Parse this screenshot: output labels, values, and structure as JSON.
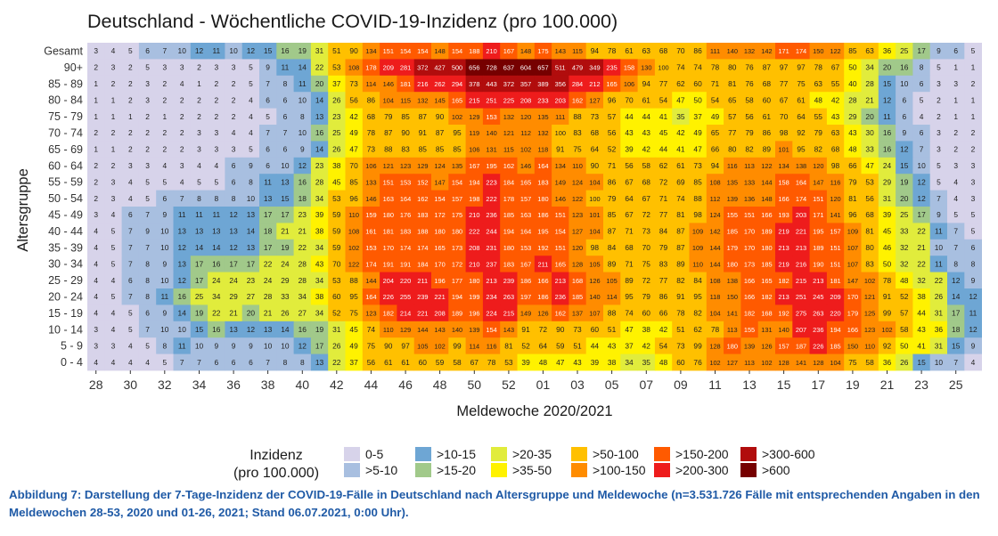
{
  "chart_data": {
    "type": "heatmap",
    "title": "Deutschland - Wöchentliche COVID-19-Inzidenz (pro 100.000)",
    "xlabel": "Meldewoche 2020/2021",
    "ylabel": "Altersgruppe",
    "x_tick_labels": [
      "28",
      "30",
      "32",
      "34",
      "36",
      "38",
      "40",
      "42",
      "44",
      "46",
      "48",
      "50",
      "52",
      "01",
      "03",
      "05",
      "07",
      "09",
      "11",
      "13",
      "15",
      "17",
      "19",
      "21",
      "23",
      "25"
    ],
    "weeks": [
      "28",
      "29",
      "30",
      "31",
      "32",
      "33",
      "34",
      "35",
      "36",
      "37",
      "38",
      "39",
      "40",
      "41",
      "42",
      "43",
      "44",
      "45",
      "46",
      "47",
      "48",
      "49",
      "50",
      "51",
      "52",
      "53",
      "01",
      "02",
      "03",
      "04",
      "05",
      "06",
      "07",
      "08",
      "09",
      "10",
      "11",
      "12",
      "13",
      "14",
      "15",
      "16",
      "17",
      "18",
      "19",
      "20",
      "21",
      "22",
      "23",
      "24",
      "25",
      "26"
    ],
    "rows": [
      {
        "label": "Gesamt",
        "values": [
          3,
          4,
          5,
          6,
          7,
          10,
          12,
          11,
          10,
          12,
          15,
          16,
          19,
          31,
          51,
          90,
          134,
          151,
          154,
          154,
          148,
          154,
          188,
          210,
          167,
          148,
          175,
          143,
          115,
          94,
          78,
          61,
          63,
          68,
          70,
          86,
          111,
          140,
          132,
          142,
          171,
          174,
          150,
          122,
          85,
          63,
          36,
          25,
          17,
          9,
          6,
          5
        ]
      },
      {
        "label": "90+",
        "values": [
          2,
          3,
          2,
          5,
          3,
          3,
          2,
          3,
          3,
          5,
          9,
          11,
          14,
          22,
          53,
          108,
          178,
          209,
          281,
          372,
          427,
          500,
          656,
          728,
          637,
          604,
          657,
          511,
          479,
          349,
          235,
          158,
          130,
          100,
          74,
          74,
          78,
          80,
          76,
          87,
          97,
          97,
          78,
          67,
          50,
          34,
          20,
          16,
          8,
          5,
          1,
          1
        ]
      },
      {
        "label": "85 - 89",
        "values": [
          1,
          2,
          2,
          3,
          2,
          4,
          1,
          2,
          2,
          5,
          7,
          8,
          11,
          20,
          37,
          73,
          114,
          146,
          181,
          216,
          262,
          294,
          378,
          443,
          372,
          357,
          389,
          356,
          284,
          212,
          165,
          106,
          94,
          77,
          62,
          60,
          71,
          81,
          76,
          68,
          77,
          75,
          63,
          55,
          40,
          28,
          15,
          10,
          6,
          3,
          3,
          2
        ]
      },
      {
        "label": "80 - 84",
        "values": [
          1,
          1,
          2,
          3,
          2,
          2,
          2,
          2,
          2,
          4,
          6,
          6,
          10,
          14,
          26,
          56,
          86,
          104,
          115,
          132,
          145,
          165,
          215,
          251,
          225,
          208,
          233,
          203,
          162,
          127,
          96,
          70,
          61,
          54,
          47,
          50,
          54,
          65,
          58,
          60,
          67,
          61,
          48,
          42,
          28,
          21,
          12,
          6,
          5,
          2,
          1,
          1
        ]
      },
      {
        "label": "75 - 79",
        "values": [
          1,
          1,
          1,
          2,
          1,
          2,
          2,
          2,
          2,
          4,
          5,
          6,
          8,
          13,
          23,
          42,
          68,
          79,
          85,
          87,
          90,
          102,
          129,
          153,
          132,
          120,
          135,
          111,
          88,
          73,
          57,
          44,
          44,
          41,
          35,
          37,
          49,
          57,
          56,
          61,
          70,
          64,
          55,
          43,
          29,
          20,
          11,
          6,
          4,
          2,
          1,
          1
        ]
      },
      {
        "label": "70 - 74",
        "values": [
          2,
          2,
          2,
          2,
          2,
          2,
          3,
          3,
          4,
          4,
          7,
          7,
          10,
          16,
          25,
          49,
          78,
          87,
          90,
          91,
          87,
          95,
          119,
          140,
          121,
          112,
          132,
          100,
          83,
          68,
          56,
          43,
          43,
          45,
          42,
          49,
          65,
          77,
          79,
          86,
          98,
          92,
          79,
          63,
          43,
          30,
          16,
          9,
          6,
          3,
          2,
          2
        ]
      },
      {
        "label": "65 - 69",
        "values": [
          1,
          1,
          2,
          2,
          2,
          2,
          3,
          3,
          3,
          5,
          6,
          6,
          9,
          14,
          26,
          47,
          73,
          88,
          83,
          85,
          85,
          85,
          106,
          131,
          115,
          102,
          118,
          91,
          75,
          64,
          52,
          39,
          42,
          44,
          41,
          47,
          66,
          80,
          82,
          89,
          101,
          95,
          82,
          68,
          48,
          33,
          16,
          12,
          7,
          3,
          2,
          2
        ]
      },
      {
        "label": "60 - 64",
        "values": [
          2,
          2,
          3,
          3,
          4,
          3,
          4,
          4,
          6,
          9,
          6,
          10,
          12,
          23,
          38,
          70,
          106,
          121,
          123,
          129,
          124,
          135,
          167,
          195,
          162,
          146,
          164,
          134,
          110,
          90,
          71,
          56,
          58,
          62,
          61,
          73,
          94,
          116,
          113,
          122,
          134,
          138,
          120,
          98,
          66,
          47,
          24,
          15,
          10,
          5,
          3,
          3
        ]
      },
      {
        "label": "55 - 59",
        "values": [
          2,
          3,
          4,
          5,
          5,
          4,
          5,
          5,
          6,
          8,
          11,
          13,
          16,
          28,
          45,
          85,
          133,
          151,
          153,
          152,
          147,
          154,
          194,
          223,
          184,
          165,
          183,
          149,
          124,
          104,
          86,
          67,
          68,
          72,
          69,
          85,
          108,
          135,
          133,
          144,
          158,
          164,
          147,
          116,
          79,
          53,
          29,
          19,
          12,
          5,
          4,
          3
        ]
      },
      {
        "label": "50 - 54",
        "values": [
          2,
          3,
          4,
          5,
          6,
          7,
          8,
          8,
          8,
          10,
          13,
          15,
          18,
          34,
          53,
          96,
          146,
          163,
          164,
          162,
          154,
          157,
          198,
          222,
          178,
          157,
          180,
          146,
          122,
          100,
          79,
          64,
          67,
          71,
          74,
          88,
          112,
          139,
          136,
          148,
          166,
          174,
          151,
          120,
          81,
          56,
          31,
          20,
          12,
          7,
          4,
          3
        ]
      },
      {
        "label": "45 - 49",
        "values": [
          3,
          4,
          6,
          7,
          9,
          11,
          11,
          11,
          12,
          13,
          17,
          17,
          23,
          39,
          59,
          110,
          159,
          180,
          176,
          183,
          172,
          175,
          210,
          236,
          185,
          163,
          186,
          151,
          123,
          101,
          85,
          67,
          72,
          77,
          81,
          98,
          124,
          155,
          151,
          166,
          193,
          203,
          171,
          141,
          96,
          68,
          39,
          25,
          17,
          9,
          5,
          5
        ]
      },
      {
        "label": "40 - 44",
        "values": [
          4,
          5,
          7,
          9,
          10,
          13,
          13,
          13,
          13,
          14,
          18,
          21,
          21,
          38,
          59,
          108,
          161,
          181,
          183,
          188,
          180,
          180,
          222,
          244,
          194,
          164,
          195,
          154,
          127,
          104,
          87,
          71,
          73,
          84,
          87,
          109,
          142,
          185,
          170,
          189,
          219,
          221,
          195,
          157,
          109,
          81,
          45,
          33,
          22,
          11,
          7,
          5
        ]
      },
      {
        "label": "35 - 39",
        "values": [
          4,
          5,
          7,
          7,
          10,
          12,
          14,
          14,
          12,
          13,
          17,
          19,
          22,
          34,
          59,
          102,
          153,
          170,
          174,
          174,
          165,
          173,
          208,
          231,
          180,
          153,
          192,
          151,
          120,
          98,
          84,
          68,
          70,
          79,
          87,
          109,
          144,
          179,
          170,
          180,
          213,
          213,
          189,
          151,
          107,
          80,
          46,
          32,
          21,
          10,
          7,
          6
        ]
      },
      {
        "label": "30 - 34",
        "values": [
          4,
          5,
          7,
          8,
          9,
          13,
          17,
          16,
          17,
          17,
          22,
          24,
          28,
          43,
          70,
          122,
          174,
          191,
          191,
          184,
          170,
          172,
          210,
          237,
          183,
          167,
          211,
          165,
          128,
          105,
          89,
          71,
          75,
          83,
          89,
          110,
          144,
          180,
          173,
          185,
          219,
          216,
          190,
          151,
          107,
          83,
          50,
          32,
          22,
          11,
          8,
          8
        ]
      },
      {
        "label": "25 - 29",
        "values": [
          4,
          4,
          6,
          8,
          10,
          12,
          17,
          24,
          24,
          23,
          24,
          29,
          28,
          34,
          53,
          88,
          144,
          204,
          220,
          211,
          196,
          177,
          180,
          213,
          239,
          186,
          166,
          213,
          168,
          126,
          105,
          89,
          72,
          77,
          82,
          84,
          108,
          138,
          166,
          165,
          182,
          215,
          213,
          181,
          147,
          102,
          78,
          48,
          32,
          22,
          12,
          9
        ]
      },
      {
        "label": "20 - 24",
        "values": [
          4,
          5,
          7,
          8,
          11,
          16,
          25,
          34,
          29,
          27,
          28,
          33,
          34,
          38,
          60,
          95,
          164,
          226,
          255,
          239,
          221,
          194,
          199,
          234,
          263,
          197,
          186,
          236,
          185,
          140,
          114,
          95,
          79,
          86,
          91,
          95,
          118,
          150,
          166,
          182,
          213,
          251,
          245,
          209,
          170,
          121,
          91,
          52,
          38,
          26,
          14,
          12
        ]
      },
      {
        "label": "15 - 19",
        "values": [
          4,
          4,
          5,
          6,
          9,
          14,
          19,
          22,
          21,
          20,
          21,
          26,
          27,
          34,
          52,
          75,
          123,
          182,
          214,
          221,
          208,
          189,
          196,
          224,
          215,
          149,
          126,
          162,
          137,
          107,
          88,
          74,
          60,
          66,
          78,
          82,
          104,
          141,
          182,
          168,
          192,
          275,
          263,
          220,
          179,
          125,
          99,
          57,
          44,
          31,
          17,
          11
        ]
      },
      {
        "label": "10 - 14",
        "values": [
          3,
          4,
          5,
          7,
          10,
          10,
          15,
          16,
          13,
          12,
          13,
          14,
          16,
          19,
          31,
          45,
          74,
          110,
          129,
          144,
          143,
          140,
          139,
          154,
          143,
          91,
          72,
          90,
          73,
          60,
          51,
          47,
          38,
          42,
          51,
          62,
          78,
          113,
          155,
          131,
          140,
          207,
          236,
          194,
          166,
          123,
          102,
          58,
          43,
          36,
          18,
          12
        ]
      },
      {
        "label": "5 - 9",
        "values": [
          3,
          3,
          4,
          5,
          8,
          11,
          10,
          9,
          9,
          9,
          10,
          10,
          12,
          17,
          26,
          49,
          75,
          90,
          97,
          105,
          102,
          99,
          114,
          116,
          81,
          52,
          64,
          59,
          51,
          44,
          43,
          37,
          42,
          54,
          73,
          99,
          128,
          180,
          139,
          126,
          157,
          187,
          226,
          185,
          150,
          110,
          92,
          50,
          41,
          31,
          15,
          9
        ]
      },
      {
        "label": "0 - 4",
        "values": [
          4,
          4,
          4,
          4,
          5,
          7,
          7,
          6,
          6,
          6,
          7,
          8,
          8,
          13,
          22,
          37,
          56,
          61,
          61,
          60,
          59,
          58,
          67,
          78,
          53,
          39,
          48,
          47,
          43,
          39,
          38,
          34,
          35,
          48,
          60,
          76,
          102,
          127,
          113,
          102,
          128,
          141,
          128,
          104,
          75,
          58,
          36,
          26,
          15,
          10,
          7,
          4
        ]
      }
    ],
    "legend": {
      "title": [
        "Inzidenz",
        "(pro 100.000)"
      ],
      "placement": "bottom",
      "bins": [
        {
          "label": "0-5",
          "color": "#d7d3ea"
        },
        {
          "label": ">5-10",
          "color": "#a8bfe0"
        },
        {
          "label": ">10-15",
          "color": "#6ea6d4"
        },
        {
          "label": ">15-20",
          "color": "#a1c98a"
        },
        {
          "label": ">20-35",
          "color": "#e1ec3c"
        },
        {
          "label": ">35-50",
          "color": "#fff200"
        },
        {
          "label": ">50-100",
          "color": "#ffc000"
        },
        {
          "label": ">100-150",
          "color": "#ff8c00"
        },
        {
          "label": ">150-200",
          "color": "#ff5a00"
        },
        {
          "label": ">200-300",
          "color": "#ee1c1c"
        },
        {
          "label": ">300-600",
          "color": "#b10d0d"
        },
        {
          "label": ">600",
          "color": "#760000"
        }
      ]
    }
  },
  "caption": "Abbildung 7: Darstellung der 7-Tage-Inzidenz der COVID-19-Fälle in Deutschland nach Altersgruppe und Meldewoche (n=3.531.726 Fälle mit entsprechenden Angaben in den Meldewochen 28-53, 2020 und 01-26, 2021; Stand 06.07.2021, 0:00 Uhr)."
}
